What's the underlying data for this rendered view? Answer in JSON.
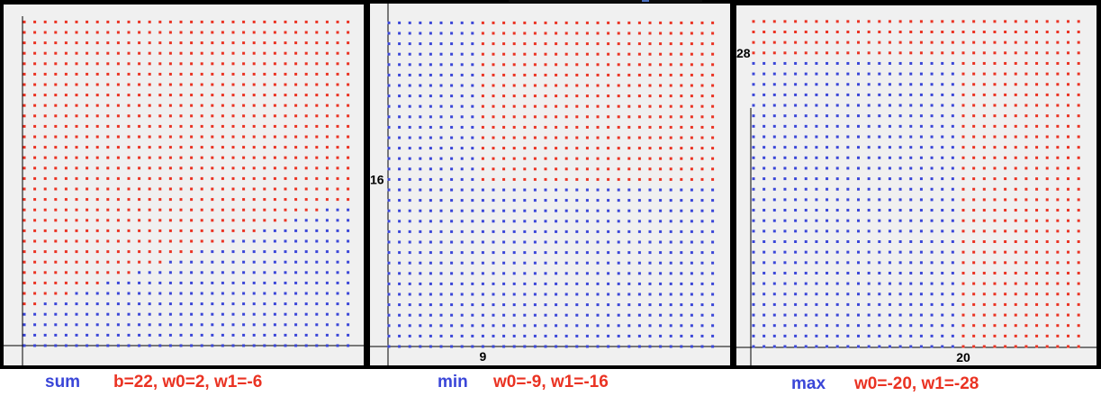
{
  "colors": {
    "class_positive": "#3a46d8",
    "class_negative": "#ea3323",
    "panel_bg": "#f0f0f0",
    "frame": "#000000",
    "axis": "#000000"
  },
  "chart_data": [
    {
      "type": "scatter",
      "operation": "sum",
      "rule": "blue where b + w0*x + w1*y > 0 (x,y = 0..31), else red",
      "params": {
        "b": 22,
        "w0": 2,
        "w1": -6
      },
      "grid_size": 32,
      "x_range": [
        0,
        31
      ],
      "y_range": [
        0,
        31
      ],
      "tick_labels": {
        "x": "",
        "y": ""
      },
      "caption": {
        "op": "sum",
        "params": "b=22, w0=2, w1=-6"
      }
    },
    {
      "type": "scatter",
      "operation": "min",
      "rule": "red where x >= 9 and y >= 16, else blue",
      "params": {
        "w0": -9,
        "w1": -16
      },
      "grid_size": 32,
      "x_range": [
        0,
        31
      ],
      "y_range": [
        0,
        31
      ],
      "threshold_x": 9,
      "threshold_y": 16,
      "tick_labels": {
        "x": "9",
        "y": "16"
      },
      "caption": {
        "op": "min",
        "params": "w0=-9, w1=-16"
      }
    },
    {
      "type": "scatter",
      "operation": "max",
      "rule": "blue where x < 20 and y < 28, else red",
      "params": {
        "w0": -20,
        "w1": -28
      },
      "grid_size": 32,
      "x_range": [
        0,
        31
      ],
      "y_range": [
        0,
        31
      ],
      "threshold_x": 20,
      "threshold_y": 28,
      "tick_labels": {
        "x": "20",
        "y": "28"
      },
      "caption": {
        "op": "max",
        "params": "w0=-20, w1=-28"
      }
    }
  ]
}
